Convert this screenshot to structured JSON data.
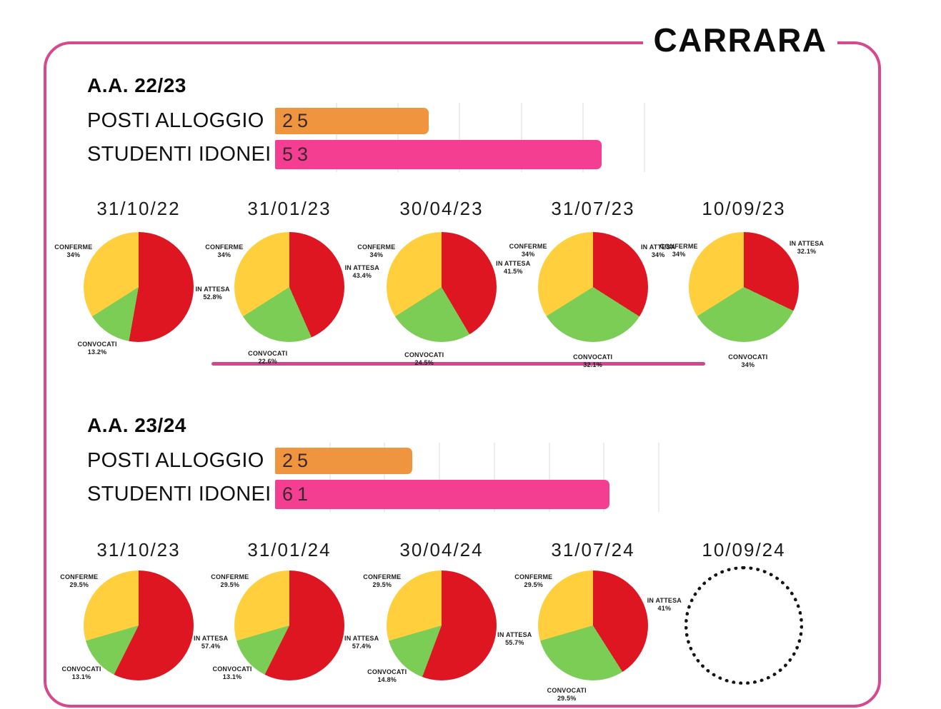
{
  "title": "CARRARA",
  "colors": {
    "accent_pink": "#D6498F",
    "bar_orange": "#F0953F",
    "bar_pink": "#F43E92",
    "pie_red": "#DE1621",
    "pie_green": "#7BCD55",
    "pie_yellow": "#FFCF3E",
    "gridline": "#EDEDED",
    "placeholder_dot": "#141414"
  },
  "chart_data": [
    {
      "type": "bar",
      "section": 0,
      "title": "A.A. 22/23",
      "categories": [
        "POSTI ALLOGGIO",
        "STUDENTI IDONEI"
      ],
      "values": [
        25,
        53
      ],
      "value_labels": [
        "25",
        "53"
      ],
      "colors": [
        "#F0953F",
        "#F43E92"
      ],
      "xlim": [
        0,
        65
      ],
      "grid_step": 10,
      "legend_position": "none"
    },
    {
      "type": "pie",
      "section": 0,
      "title": "31/10/22",
      "labels": [
        "IN ATTESA",
        "CONVOCATI",
        "CONFERME"
      ],
      "values": [
        52.8,
        13.2,
        34
      ],
      "value_labels": [
        "52.8%",
        "13.2%",
        "34%"
      ],
      "colors": [
        "#DE1621",
        "#7BCD55",
        "#FFCF3E"
      ]
    },
    {
      "type": "pie",
      "section": 0,
      "title": "31/01/23",
      "labels": [
        "IN ATTESA",
        "CONVOCATI",
        "CONFERME"
      ],
      "values": [
        43.4,
        22.6,
        34
      ],
      "value_labels": [
        "43.4%",
        "22.6%",
        "34%"
      ],
      "colors": [
        "#DE1621",
        "#7BCD55",
        "#FFCF3E"
      ]
    },
    {
      "type": "pie",
      "section": 0,
      "title": "30/04/23",
      "labels": [
        "IN ATTESA",
        "CONVOCATI",
        "CONFERME"
      ],
      "values": [
        41.5,
        24.5,
        34
      ],
      "value_labels": [
        "41.5%",
        "24.5%",
        "34%"
      ],
      "colors": [
        "#DE1621",
        "#7BCD55",
        "#FFCF3E"
      ]
    },
    {
      "type": "pie",
      "section": 0,
      "title": "31/07/23",
      "labels": [
        "IN ATTESA",
        "CONVOCATI",
        "CONFERME"
      ],
      "values": [
        34,
        32.1,
        34
      ],
      "value_labels": [
        "34%",
        "32.1%",
        "34%"
      ],
      "colors": [
        "#DE1621",
        "#7BCD55",
        "#FFCF3E"
      ]
    },
    {
      "type": "pie",
      "section": 0,
      "title": "10/09/23",
      "labels": [
        "IN ATTESA",
        "CONVOCATI",
        "CONFERME"
      ],
      "values": [
        32.1,
        34,
        34
      ],
      "value_labels": [
        "32.1%",
        "34%",
        "34%"
      ],
      "colors": [
        "#DE1621",
        "#7BCD55",
        "#FFCF3E"
      ]
    },
    {
      "type": "bar",
      "section": 1,
      "title": "A.A. 23/24",
      "categories": [
        "POSTI ALLOGGIO",
        "STUDENTI IDONEI"
      ],
      "values": [
        25,
        61
      ],
      "value_labels": [
        "25",
        "61"
      ],
      "colors": [
        "#F0953F",
        "#F43E92"
      ],
      "xlim": [
        0,
        73
      ],
      "grid_step": 10,
      "legend_position": "none"
    },
    {
      "type": "pie",
      "section": 1,
      "title": "31/10/23",
      "labels": [
        "IN ATTESA",
        "CONVOCATI",
        "CONFERME"
      ],
      "values": [
        57.4,
        13.1,
        29.5
      ],
      "value_labels": [
        "57.4%",
        "13.1%",
        "29.5%"
      ],
      "colors": [
        "#DE1621",
        "#7BCD55",
        "#FFCF3E"
      ]
    },
    {
      "type": "pie",
      "section": 1,
      "title": "31/01/24",
      "labels": [
        "IN ATTESA",
        "CONVOCATI",
        "CONFERME"
      ],
      "values": [
        57.4,
        13.1,
        29.5
      ],
      "value_labels": [
        "57.4%",
        "13.1%",
        "29.5%"
      ],
      "colors": [
        "#DE1621",
        "#7BCD55",
        "#FFCF3E"
      ]
    },
    {
      "type": "pie",
      "section": 1,
      "title": "30/04/24",
      "labels": [
        "IN ATTESA",
        "CONVOCATI",
        "CONFERME"
      ],
      "values": [
        55.7,
        14.8,
        29.5
      ],
      "value_labels": [
        "55.7%",
        "14.8%",
        "29.5%"
      ],
      "colors": [
        "#DE1621",
        "#7BCD55",
        "#FFCF3E"
      ]
    },
    {
      "type": "pie",
      "section": 1,
      "title": "31/07/24",
      "labels": [
        "IN ATTESA",
        "CONVOCATI",
        "CONFERME"
      ],
      "values": [
        41,
        29.5,
        29.5
      ],
      "value_labels": [
        "41%",
        "29.5%",
        "29.5%"
      ],
      "colors": [
        "#DE1621",
        "#7BCD55",
        "#FFCF3E"
      ]
    },
    {
      "type": "pie",
      "section": 1,
      "title": "10/09/24",
      "placeholder": true,
      "labels": [],
      "values": [],
      "value_labels": [],
      "colors": []
    }
  ]
}
